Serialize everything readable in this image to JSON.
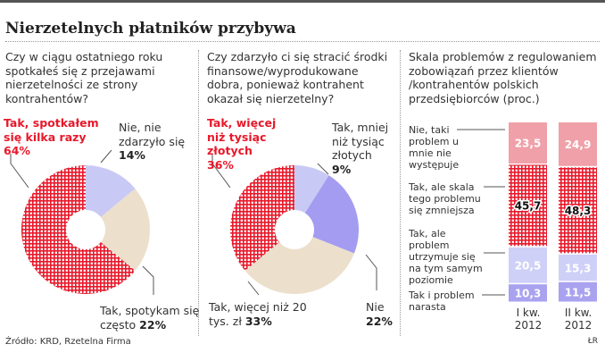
{
  "title": "Nierzetelnych płatników przybywa",
  "source": "Źródło: KRD, Rzetelna Firma",
  "initials": "ŁR",
  "colors": {
    "red": "#e8182a",
    "lavender": "#c9c9f5",
    "beige": "#ece0cc",
    "purple": "#a49cf0",
    "pink": "#f0a0a8",
    "light_lavender": "#cfd0f7",
    "mid_purple": "#a9a2ef"
  },
  "chart_data": [
    {
      "type": "pie",
      "donut": true,
      "question": "Czy w ciągu ostatniego roku spotkałeś się z przejawami nierzetelności ze strony kontrahentów?",
      "slices": [
        {
          "label": "Nie, nie zdarzyło się",
          "value": 14,
          "value_label": "14%",
          "color": "#c9c9f5"
        },
        {
          "label": "Tak, spotykam się często",
          "value": 22,
          "value_label": "22%",
          "color": "#ece0cc"
        },
        {
          "label": "Tak, spotkałem się kilka razy",
          "value": 64,
          "value_label": "64%",
          "color": "#e8182a",
          "pattern": "grid"
        }
      ]
    },
    {
      "type": "pie",
      "donut": true,
      "question": "Czy zdarzyło ci się stracić środki finansowe/wyprodukowane dobra, ponieważ kontrahent okazał się nierzetelny?",
      "slices": [
        {
          "label": "Tak, mniej niż tysiąc złotych",
          "value": 9,
          "value_label": "9%",
          "color": "#c9c9f5"
        },
        {
          "label": "Nie",
          "value": 22,
          "value_label": "22%",
          "color": "#a49cf0"
        },
        {
          "label": "Tak, więcej niż 20 tys. zł",
          "value": 33,
          "value_label": "33%",
          "color": "#ece0cc"
        },
        {
          "label": "Tak, więcej niż tysiąc złotych",
          "value": 36,
          "value_label": "36%",
          "color": "#e8182a",
          "pattern": "grid"
        }
      ]
    },
    {
      "type": "bar",
      "stacked": true,
      "title": "Skala problemów z regulowaniem zobowiązań przez klientów /kontrahentów polskich przedsiębiorców (proc.)",
      "categories": [
        "I kw. 2012",
        "II kw. 2012"
      ],
      "series": [
        {
          "name": "Tak i problem narasta",
          "values": [
            10.3,
            11.5
          ],
          "labels": [
            "10,3",
            "11,5"
          ],
          "color": "#a9a2ef"
        },
        {
          "name": "Tak, ale problem utrzymuje się na tym samym poziomie",
          "values": [
            20.5,
            15.3
          ],
          "labels": [
            "20,5",
            "15,3"
          ],
          "color": "#cfd0f7"
        },
        {
          "name": "Tak, ale skala tego problemu się zmniejsza",
          "values": [
            45.7,
            48.3
          ],
          "labels": [
            "45,7",
            "48,3"
          ],
          "color": "#e8182a",
          "pattern": "grid"
        },
        {
          "name": "Nie, taki problem u mnie nie występuje",
          "values": [
            23.5,
            24.9
          ],
          "labels": [
            "23,5",
            "24,9"
          ],
          "color": "#f0a0a8"
        }
      ]
    }
  ]
}
